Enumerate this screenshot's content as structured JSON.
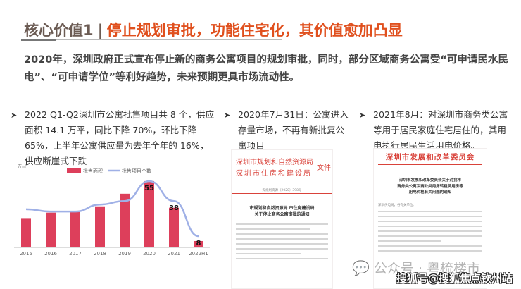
{
  "header": {
    "title_main": "核心价值1",
    "separator": "|",
    "title_sub": "停止规划审批，功能住宅化，其价值愈加凸显"
  },
  "intro": "2020年，深圳政府正式宣布停止新的商务公寓项目的规划审批，同时，部分区域商务公寓受“可申请民水民电”、“可申请学位”等利好趋势，未来预期更具市场流动性。",
  "bullets": [
    {
      "icon": "arrow-bullet-icon",
      "text": "2022 Q1-Q2深圳市公寓批售项目共 8 个，供应面积 14.1 万平，同比下降 70%，环比下降65%，上半年公寓供应量为去年全年的 16%，供应断崖式下跌"
    },
    {
      "icon": "arrow-bullet-icon",
      "text": "2020年7月31日：公寓进入存量市场，不再有新批复公寓项目"
    },
    {
      "icon": "arrow-bullet-icon",
      "text": "2021年8月：对深圳市商务类公寓等用于居民家庭住宅居住的，其用电执行居民生活用电价格。"
    }
  ],
  "chart_data": {
    "type": "bar",
    "ylabel": "万㎡",
    "categories": [
      "2015",
      "2016",
      "2017",
      "2018",
      "2019",
      "2020",
      "2021",
      "2022H1"
    ],
    "series": [
      {
        "name": "批售面积",
        "type": "bar",
        "color": "#dd3f5b",
        "values": [
          65,
          77,
          80,
          91,
          119,
          147,
          88,
          14.1
        ]
      },
      {
        "name": "批售项目个数",
        "type": "line",
        "color": "#9fb0e6",
        "values": [
          31,
          29,
          29,
          35,
          38,
          55,
          38,
          8
        ]
      }
    ],
    "data_labels": [
      {
        "category": "2020",
        "text": "55"
      },
      {
        "category": "2021",
        "text": "38"
      },
      {
        "category": "2022H1",
        "text": "8"
      }
    ],
    "grid": false,
    "legend": "top"
  },
  "doc1": {
    "header1": "深圳市规划和自然资源局",
    "header2": "深圳市住房和建设局",
    "header_suffix": "文件",
    "number": "深规划资源〔2020〕398号",
    "title1": "市规划和自然资源局 市住房建设局",
    "title2": "关于停止商务公寓审批的通知"
  },
  "doc2": {
    "header": "深圳市发展和改革委员会",
    "title1": "深圳市发展和改革委员会关于对我市",
    "title2": "商务类公寓及商业类用房转租赁用房等",
    "title3": "用电价格有关问题的通知",
    "salutation": "深圳供电局，各有关单位："
  },
  "watermarks": {
    "wechat": "公众号 · 粤梳楼市",
    "sohu": "搜狐号@搜狐焦点钦州站"
  }
}
